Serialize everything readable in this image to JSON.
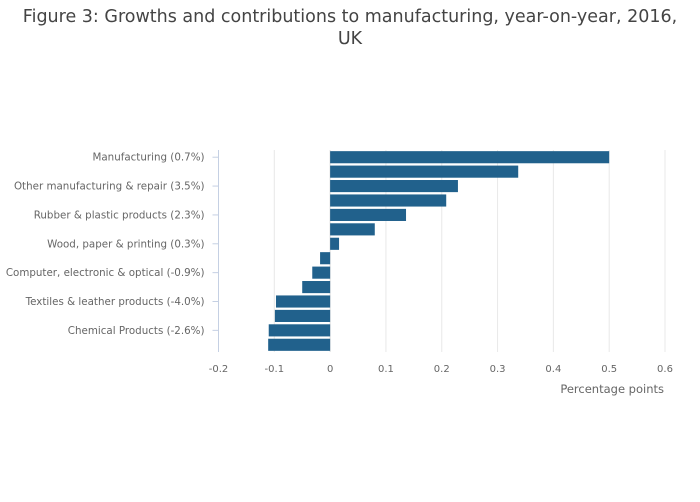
{
  "chart_data": {
    "type": "bar",
    "orientation": "horizontal",
    "title": "Figure 3: Growths and contributions to manufacturing, year-on-year, 2016, UK",
    "title_lines": [
      "Figure 3: Growths and contributions to manufacturing, year-on-year, 2016,",
      "UK"
    ],
    "xlabel": "Percentage points",
    "ylabel": "",
    "xlim": [
      -0.2,
      0.6
    ],
    "x_ticks": [
      -0.2,
      -0.1,
      0,
      0.1,
      0.2,
      0.3,
      0.4,
      0.5,
      0.6
    ],
    "x_tick_labels": [
      "-0.2",
      "-0.1",
      "0",
      "0.1",
      "0.2",
      "0.3",
      "0.4",
      "0.5",
      "0.6"
    ],
    "grid": true,
    "legend": "none",
    "bar_color": "#21618c",
    "categories": [
      "Manufacturing (0.7%)",
      "",
      "Other manufacturing & repair (3.5%)",
      "",
      "Rubber & plastic products (2.3%)",
      "",
      "Wood, paper & printing (0.3%)",
      "",
      "Computer, electronic & optical (-0.9%)",
      "",
      "Textiles & leather products (-4.0%)",
      "",
      "Chemical Products (-2.6%)",
      ""
    ],
    "values": [
      0.5,
      0.337,
      0.229,
      0.208,
      0.136,
      0.08,
      0.016,
      -0.018,
      -0.032,
      -0.05,
      -0.097,
      -0.099,
      -0.11,
      -0.111
    ]
  }
}
